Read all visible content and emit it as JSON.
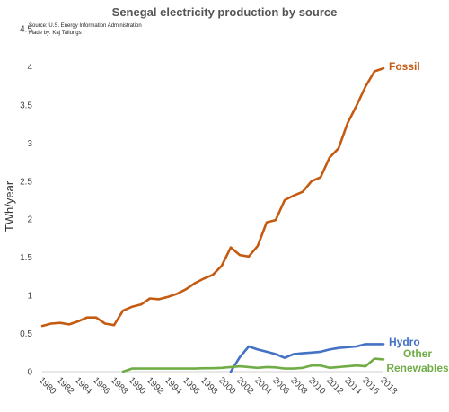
{
  "chart_data": {
    "type": "line",
    "title": "Senegal electricity production by source",
    "notes": [
      "Source: U.S. Energy Information Administration",
      "Made by: Kaj Tallungs"
    ],
    "ylabel": "TWh/year",
    "xlabel": "",
    "ylim": [
      0,
      4.5
    ],
    "yticks": [
      "0",
      "0.5",
      "1",
      "1.5",
      "2",
      "2.5",
      "3",
      "3.5",
      "4",
      "4.5"
    ],
    "xlim": [
      1980,
      2018
    ],
    "xticks": [
      "1980",
      "1982",
      "1984",
      "1986",
      "1988",
      "1990",
      "1992",
      "1994",
      "1996",
      "1998",
      "2000",
      "2002",
      "2004",
      "2006",
      "2008",
      "2010",
      "2012",
      "2014",
      "2016",
      "2018"
    ],
    "grid": false,
    "legend": "inline labels at line ends",
    "series": [
      {
        "name": "Fossil",
        "color": "#c55a11",
        "x": [
          1980,
          1981,
          1982,
          1983,
          1984,
          1985,
          1986,
          1987,
          1988,
          1989,
          1990,
          1991,
          1992,
          1993,
          1994,
          1995,
          1996,
          1997,
          1998,
          1999,
          2000,
          2001,
          2002,
          2003,
          2004,
          2005,
          2006,
          2007,
          2008,
          2009,
          2010,
          2011,
          2012,
          2013,
          2014,
          2015,
          2016,
          2017,
          2018
        ],
        "values": [
          0.6,
          0.63,
          0.64,
          0.62,
          0.66,
          0.71,
          0.71,
          0.63,
          0.61,
          0.8,
          0.85,
          0.88,
          0.96,
          0.95,
          0.98,
          1.02,
          1.08,
          1.16,
          1.22,
          1.27,
          1.39,
          1.63,
          1.53,
          1.51,
          1.65,
          1.96,
          1.99,
          2.25,
          2.31,
          2.36,
          2.5,
          2.55,
          2.81,
          2.93,
          3.26,
          3.49,
          3.74,
          3.94,
          3.98
        ]
      },
      {
        "name": "Hydro",
        "color": "#4472c4",
        "x": [
          2001,
          2002,
          2003,
          2004,
          2005,
          2006,
          2007,
          2008,
          2009,
          2010,
          2011,
          2012,
          2013,
          2014,
          2015,
          2016,
          2017,
          2018
        ],
        "values": [
          0.0,
          0.19,
          0.33,
          0.29,
          0.26,
          0.23,
          0.18,
          0.23,
          0.24,
          0.25,
          0.26,
          0.29,
          0.31,
          0.32,
          0.33,
          0.36,
          0.36,
          0.36
        ]
      },
      {
        "name": "Other Renewables",
        "color": "#70ad47",
        "x": [
          1989,
          1990,
          1991,
          1992,
          1993,
          1994,
          1995,
          1996,
          1997,
          1998,
          1999,
          2000,
          2001,
          2002,
          2003,
          2004,
          2005,
          2006,
          2007,
          2008,
          2009,
          2010,
          2011,
          2012,
          2013,
          2014,
          2015,
          2016,
          2017,
          2018
        ],
        "values": [
          0.0,
          0.04,
          0.04,
          0.04,
          0.04,
          0.04,
          0.04,
          0.04,
          0.04,
          0.045,
          0.045,
          0.05,
          0.06,
          0.07,
          0.06,
          0.05,
          0.06,
          0.055,
          0.04,
          0.04,
          0.05,
          0.08,
          0.08,
          0.05,
          0.06,
          0.07,
          0.08,
          0.07,
          0.17,
          0.16
        ]
      }
    ]
  }
}
